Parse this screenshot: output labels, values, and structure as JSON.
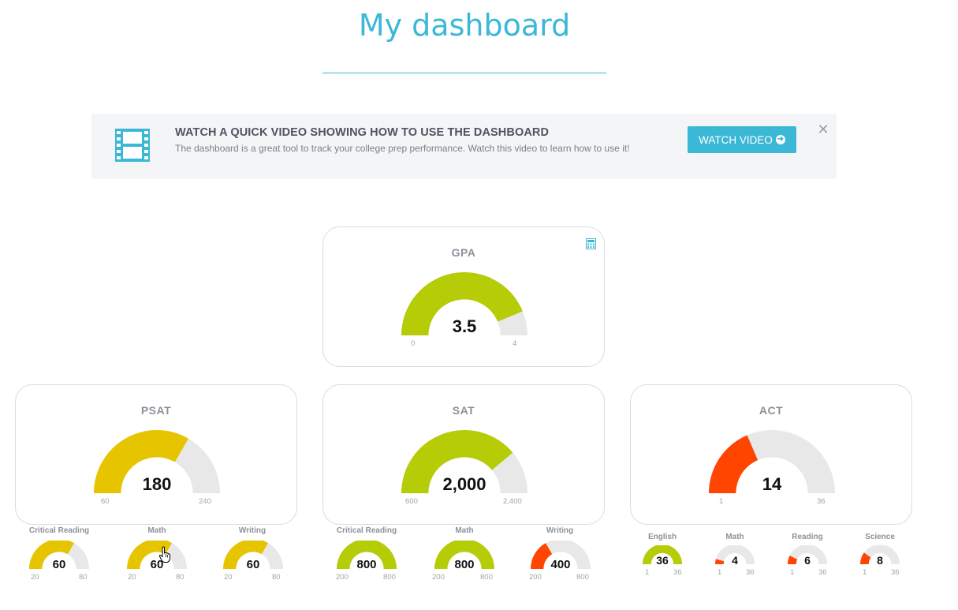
{
  "page": {
    "title": "My dashboard"
  },
  "colors": {
    "accent": "#3bb8d6",
    "green": "#b5cc06",
    "yellow": "#e6c500",
    "red": "#ff4500",
    "track": "#e8e8e8"
  },
  "banner": {
    "icon": "film-icon",
    "title": "WATCH A QUICK VIDEO SHOWING HOW TO USE THE DASHBOARD",
    "text": "The dashboard is a great tool to track your college prep performance. Watch this video to learn how to use it!",
    "button_label": "WATCH VIDEO",
    "button_icon": "arrow-circle-right-icon",
    "close_icon": "close-icon"
  },
  "cards": {
    "gpa": {
      "title": "GPA",
      "icon": "calculator-icon",
      "main": {
        "value": 3.5,
        "min": 0,
        "max": 4,
        "display": "3.5",
        "min_label": "0",
        "max_label": "4",
        "color": "green"
      }
    },
    "psat": {
      "title": "PSAT",
      "main": {
        "value": 180,
        "min": 60,
        "max": 240,
        "display": "180",
        "min_label": "60",
        "max_label": "240",
        "color": "yellow"
      },
      "subs": [
        {
          "title": "Critical Reading",
          "value": 60,
          "min": 20,
          "max": 80,
          "display": "60",
          "min_label": "20",
          "max_label": "80",
          "color": "yellow"
        },
        {
          "title": "Math",
          "value": 60,
          "min": 20,
          "max": 80,
          "display": "60",
          "min_label": "20",
          "max_label": "80",
          "color": "yellow"
        },
        {
          "title": "Writing",
          "value": 60,
          "min": 20,
          "max": 80,
          "display": "60",
          "min_label": "20",
          "max_label": "80",
          "color": "yellow"
        }
      ]
    },
    "sat": {
      "title": "SAT",
      "main": {
        "value": 2000,
        "min": 600,
        "max": 2400,
        "display": "2,000",
        "min_label": "600",
        "max_label": "2,400",
        "color": "green"
      },
      "subs": [
        {
          "title": "Critical Reading",
          "value": 800,
          "min": 200,
          "max": 800,
          "display": "800",
          "min_label": "200",
          "max_label": "800",
          "color": "green"
        },
        {
          "title": "Math",
          "value": 800,
          "min": 200,
          "max": 800,
          "display": "800",
          "min_label": "200",
          "max_label": "800",
          "color": "green"
        },
        {
          "title": "Writing",
          "value": 400,
          "min": 200,
          "max": 800,
          "display": "400",
          "min_label": "200",
          "max_label": "800",
          "color": "red"
        }
      ]
    },
    "act": {
      "title": "ACT",
      "main": {
        "value": 14,
        "min": 1,
        "max": 36,
        "display": "14",
        "min_label": "1",
        "max_label": "36",
        "color": "red"
      },
      "subs": [
        {
          "title": "English",
          "value": 36,
          "min": 1,
          "max": 36,
          "display": "36",
          "min_label": "1",
          "max_label": "36",
          "color": "green"
        },
        {
          "title": "Math",
          "value": 4,
          "min": 1,
          "max": 36,
          "display": "4",
          "min_label": "1",
          "max_label": "36",
          "color": "red"
        },
        {
          "title": "Reading",
          "value": 6,
          "min": 1,
          "max": 36,
          "display": "6",
          "min_label": "1",
          "max_label": "36",
          "color": "red"
        },
        {
          "title": "Science",
          "value": 8,
          "min": 1,
          "max": 36,
          "display": "8",
          "min_label": "1",
          "max_label": "36",
          "color": "red"
        }
      ]
    }
  }
}
